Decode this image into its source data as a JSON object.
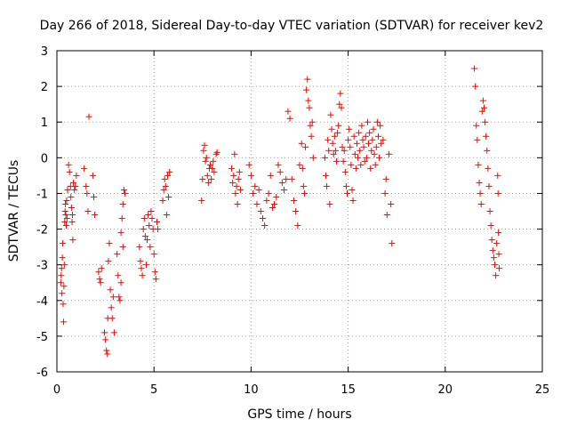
{
  "chart_data": {
    "type": "scatter",
    "title": "Day 266 of 2018, Sidereal Day-to-day VTEC variation (SDTVAR) for receiver kev2",
    "xlabel": "GPS time / hours",
    "ylabel": "SDTVAR / TECUs",
    "xlim": [
      0,
      25
    ],
    "ylim": [
      -6,
      3
    ],
    "xticks": [
      0,
      5,
      10,
      15,
      20,
      25
    ],
    "yticks": [
      -6,
      -5,
      -4,
      -3,
      -2,
      -1,
      0,
      1,
      2,
      3
    ],
    "xtick_labels": [
      "0",
      "5",
      "10",
      "15",
      "20",
      "25"
    ],
    "ytick_labels": [
      "-6",
      "-5",
      "-4",
      "-3",
      "-2",
      "-1",
      "0",
      "1",
      "2",
      "3"
    ],
    "grid": true,
    "marker": "+",
    "marker_color": "#ff0000",
    "series": [
      {
        "name": "kev2",
        "points": [
          [
            0.2,
            -3.5
          ],
          [
            0.22,
            -3.3
          ],
          [
            0.24,
            -3.1
          ],
          [
            0.26,
            -3.8
          ],
          [
            0.28,
            -2.8
          ],
          [
            0.3,
            -2.4
          ],
          [
            0.32,
            -4.1
          ],
          [
            0.34,
            -4.6
          ],
          [
            0.36,
            -3.6
          ],
          [
            0.38,
            -3.0
          ],
          [
            0.4,
            -1.8
          ],
          [
            0.42,
            -1.5
          ],
          [
            0.44,
            -1.3
          ],
          [
            0.46,
            -1.6
          ],
          [
            0.48,
            -1.9
          ],
          [
            0.5,
            -1.2
          ],
          [
            0.52,
            -1.7
          ],
          [
            0.55,
            -0.9
          ],
          [
            0.6,
            -0.2
          ],
          [
            0.65,
            -0.4
          ],
          [
            0.7,
            -0.8
          ],
          [
            0.72,
            -1.1
          ],
          [
            0.75,
            -1.4
          ],
          [
            0.78,
            -1.8
          ],
          [
            0.8,
            -1.6
          ],
          [
            0.85,
            -0.7
          ],
          [
            0.9,
            -0.9
          ],
          [
            0.95,
            -0.8
          ],
          [
            1.0,
            -0.5
          ],
          [
            0.82,
            -2.3
          ],
          [
            1.4,
            -0.3
          ],
          [
            1.5,
            -0.8
          ],
          [
            1.55,
            -1.0
          ],
          [
            1.6,
            -1.5
          ],
          [
            1.65,
            1.15
          ],
          [
            1.85,
            -0.5
          ],
          [
            1.9,
            -1.1
          ],
          [
            1.95,
            -1.6
          ],
          [
            2.15,
            -3.2
          ],
          [
            2.2,
            -3.4
          ],
          [
            2.25,
            -3.5
          ],
          [
            2.3,
            -3.1
          ],
          [
            2.45,
            -4.9
          ],
          [
            2.5,
            -5.1
          ],
          [
            2.55,
            -5.4
          ],
          [
            2.6,
            -5.5
          ],
          [
            2.62,
            -4.5
          ],
          [
            2.65,
            -2.9
          ],
          [
            2.7,
            -2.4
          ],
          [
            2.75,
            -3.7
          ],
          [
            2.8,
            -4.2
          ],
          [
            2.85,
            -4.5
          ],
          [
            2.9,
            -3.9
          ],
          [
            2.95,
            -4.9
          ],
          [
            3.1,
            -2.7
          ],
          [
            3.15,
            -3.3
          ],
          [
            3.2,
            -3.9
          ],
          [
            3.25,
            -4.0
          ],
          [
            3.3,
            -2.1
          ],
          [
            3.35,
            -1.7
          ],
          [
            3.4,
            -1.3
          ],
          [
            3.45,
            -0.9
          ],
          [
            3.5,
            -1.0
          ],
          [
            3.3,
            -3.5
          ],
          [
            3.4,
            -2.5
          ],
          [
            4.25,
            -2.5
          ],
          [
            4.3,
            -2.9
          ],
          [
            4.35,
            -3.1
          ],
          [
            4.4,
            -3.3
          ],
          [
            4.45,
            -2.0
          ],
          [
            4.5,
            -1.7
          ],
          [
            4.55,
            -2.2
          ],
          [
            4.6,
            -3.0
          ],
          [
            4.65,
            -2.3
          ],
          [
            4.7,
            -1.6
          ],
          [
            4.75,
            -1.9
          ],
          [
            4.8,
            -2.5
          ],
          [
            4.85,
            -1.5
          ],
          [
            4.9,
            -1.7
          ],
          [
            4.95,
            -2.0
          ],
          [
            5.0,
            -2.7
          ],
          [
            5.05,
            -3.2
          ],
          [
            5.1,
            -3.4
          ],
          [
            5.15,
            -1.8
          ],
          [
            5.2,
            -2.0
          ],
          [
            5.45,
            -1.2
          ],
          [
            5.5,
            -0.9
          ],
          [
            5.55,
            -0.6
          ],
          [
            5.6,
            -0.8
          ],
          [
            5.65,
            -1.6
          ],
          [
            5.7,
            -0.5
          ],
          [
            5.75,
            -1.1
          ],
          [
            5.8,
            -0.4
          ],
          [
            7.45,
            -1.2
          ],
          [
            7.5,
            -0.6
          ],
          [
            7.55,
            0.2
          ],
          [
            7.6,
            0.35
          ],
          [
            7.65,
            -0.1
          ],
          [
            7.7,
            0.0
          ],
          [
            7.75,
            -0.5
          ],
          [
            7.8,
            -0.7
          ],
          [
            7.85,
            -0.3
          ],
          [
            7.9,
            -0.2
          ],
          [
            7.95,
            -0.6
          ],
          [
            8.0,
            -0.3
          ],
          [
            8.05,
            -0.1
          ],
          [
            8.1,
            -0.4
          ],
          [
            8.2,
            0.1
          ],
          [
            8.25,
            0.15
          ],
          [
            9.0,
            -0.3
          ],
          [
            9.05,
            -0.7
          ],
          [
            9.1,
            -0.5
          ],
          [
            9.15,
            0.1
          ],
          [
            9.2,
            -1.0
          ],
          [
            9.25,
            -0.8
          ],
          [
            9.3,
            -1.3
          ],
          [
            9.35,
            -0.6
          ],
          [
            9.4,
            -0.4
          ],
          [
            9.45,
            -0.9
          ],
          [
            9.9,
            -0.2
          ],
          [
            10.0,
            -0.5
          ],
          [
            10.1,
            -1.0
          ],
          [
            10.2,
            -0.8
          ],
          [
            10.3,
            -1.3
          ],
          [
            10.4,
            -0.9
          ],
          [
            10.5,
            -1.5
          ],
          [
            10.6,
            -1.7
          ],
          [
            10.7,
            -1.9
          ],
          [
            10.8,
            -1.2
          ],
          [
            10.9,
            -1.0
          ],
          [
            11.0,
            -0.5
          ],
          [
            11.1,
            -1.4
          ],
          [
            11.2,
            -1.3
          ],
          [
            11.3,
            -1.1
          ],
          [
            11.4,
            -0.2
          ],
          [
            11.5,
            -0.4
          ],
          [
            11.6,
            -0.7
          ],
          [
            11.7,
            -0.9
          ],
          [
            11.8,
            -0.6
          ],
          [
            11.9,
            1.3
          ],
          [
            12.0,
            1.1
          ],
          [
            12.1,
            -0.6
          ],
          [
            12.2,
            -1.2
          ],
          [
            12.3,
            -1.5
          ],
          [
            12.4,
            -1.9
          ],
          [
            12.5,
            -0.2
          ],
          [
            12.6,
            0.4
          ],
          [
            12.7,
            -0.8
          ],
          [
            12.8,
            0.3
          ],
          [
            12.85,
            1.9
          ],
          [
            12.9,
            2.2
          ],
          [
            12.95,
            1.6
          ],
          [
            13.0,
            1.4
          ],
          [
            13.05,
            0.9
          ],
          [
            13.1,
            0.6
          ],
          [
            13.15,
            1.0
          ],
          [
            13.2,
            0.0
          ],
          [
            12.75,
            -1.0
          ],
          [
            12.65,
            -0.3
          ],
          [
            13.8,
            0.0
          ],
          [
            13.85,
            -0.5
          ],
          [
            13.9,
            -0.8
          ],
          [
            13.95,
            0.5
          ],
          [
            14.0,
            0.2
          ],
          [
            14.05,
            -1.3
          ],
          [
            14.1,
            1.2
          ],
          [
            14.15,
            0.8
          ],
          [
            14.2,
            0.4
          ],
          [
            14.25,
            0.1
          ],
          [
            14.3,
            0.6
          ],
          [
            14.35,
            0.2
          ],
          [
            14.4,
            -0.1
          ],
          [
            14.45,
            0.7
          ],
          [
            14.5,
            0.9
          ],
          [
            14.55,
            1.5
          ],
          [
            14.6,
            1.8
          ],
          [
            14.65,
            1.4
          ],
          [
            14.7,
            0.3
          ],
          [
            14.75,
            -0.1
          ],
          [
            14.8,
            0.2
          ],
          [
            14.85,
            -0.4
          ],
          [
            14.9,
            -0.8
          ],
          [
            14.95,
            -1.0
          ],
          [
            15.0,
            0.5
          ],
          [
            15.05,
            0.8
          ],
          [
            15.1,
            0.3
          ],
          [
            15.15,
            -0.2
          ],
          [
            15.2,
            -0.9
          ],
          [
            15.25,
            -1.2
          ],
          [
            15.3,
            0.6
          ],
          [
            15.35,
            0.1
          ],
          [
            15.4,
            -0.3
          ],
          [
            15.45,
            0.4
          ],
          [
            15.5,
            0.0
          ],
          [
            15.55,
            0.7
          ],
          [
            15.6,
            0.2
          ],
          [
            15.65,
            -0.2
          ],
          [
            15.7,
            0.9
          ],
          [
            15.75,
            0.5
          ],
          [
            15.8,
            0.3
          ],
          [
            15.85,
            -0.1
          ],
          [
            15.9,
            0.6
          ],
          [
            15.95,
            0.0
          ],
          [
            16.0,
            1.0
          ],
          [
            16.05,
            0.4
          ],
          [
            16.1,
            0.7
          ],
          [
            16.15,
            -0.3
          ],
          [
            16.2,
            0.2
          ],
          [
            16.25,
            0.5
          ],
          [
            16.3,
            0.8
          ],
          [
            16.35,
            0.1
          ],
          [
            16.4,
            -0.2
          ],
          [
            16.45,
            0.3
          ],
          [
            16.5,
            1.0
          ],
          [
            16.55,
            0.6
          ],
          [
            16.6,
            0.0
          ],
          [
            16.65,
            0.9
          ],
          [
            16.7,
            0.4
          ],
          [
            16.8,
            0.5
          ],
          [
            16.9,
            -1.0
          ],
          [
            17.0,
            -1.6
          ],
          [
            17.1,
            0.1
          ],
          [
            17.2,
            -1.3
          ],
          [
            17.25,
            -2.4
          ],
          [
            16.95,
            -0.6
          ],
          [
            21.5,
            2.5
          ],
          [
            21.55,
            2.0
          ],
          [
            21.6,
            0.9
          ],
          [
            21.65,
            0.5
          ],
          [
            21.7,
            -0.2
          ],
          [
            21.75,
            -0.7
          ],
          [
            21.8,
            -1.0
          ],
          [
            21.85,
            -1.3
          ],
          [
            21.9,
            1.3
          ],
          [
            21.95,
            1.6
          ],
          [
            22.0,
            1.4
          ],
          [
            22.05,
            1.0
          ],
          [
            22.1,
            0.6
          ],
          [
            22.15,
            0.2
          ],
          [
            22.2,
            -0.3
          ],
          [
            22.25,
            -0.8
          ],
          [
            22.3,
            -1.5
          ],
          [
            22.35,
            -1.9
          ],
          [
            22.4,
            -2.3
          ],
          [
            22.45,
            -2.6
          ],
          [
            22.5,
            -2.8
          ],
          [
            22.55,
            -3.0
          ],
          [
            22.6,
            -3.3
          ],
          [
            22.65,
            -2.4
          ],
          [
            22.7,
            -0.5
          ],
          [
            22.72,
            -1.0
          ],
          [
            22.74,
            -2.1
          ],
          [
            22.76,
            -2.7
          ],
          [
            22.78,
            -3.1
          ]
        ]
      }
    ]
  }
}
